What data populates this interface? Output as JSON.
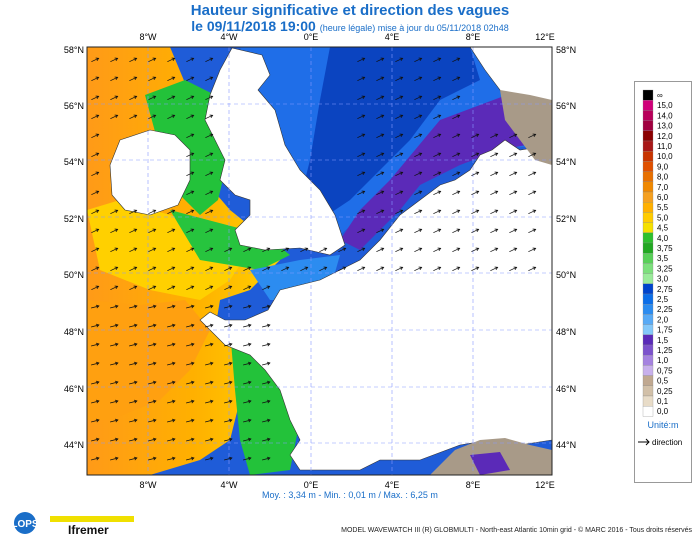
{
  "header": {
    "title": "Hauteur significative et direction des vagues",
    "date_label": "le 09/11/2018 19:00",
    "update_note": "(heure légale) mise à jour du 05/11/2018 02h48"
  },
  "map": {
    "lon_labels": [
      "8°W",
      "4°W",
      "0°E",
      "4°E",
      "8°E",
      "12°E"
    ],
    "lat_labels": [
      "58°N",
      "56°N",
      "54°N",
      "52°N",
      "50°N",
      "48°N",
      "46°N",
      "44°N"
    ],
    "colors": {
      "sea_high": "#ff9a18",
      "sea_mid": "#ffd000",
      "sea_green": "#23c23a",
      "sea_blue": "#1850e0",
      "land": "#ffffff",
      "land_east": "#a89a88"
    }
  },
  "legend": {
    "values": [
      "∞",
      "15,0",
      "14,0",
      "13,0",
      "12,0",
      "11,0",
      "10,0",
      "9,0",
      "8,0",
      "7,0",
      "6,0",
      "5,5",
      "5,0",
      "4,5",
      "4,0",
      "3,75",
      "3,5",
      "3,25",
      "3,0",
      "2,75",
      "2,5",
      "2,25",
      "2,0",
      "1,75",
      "1,5",
      "1,25",
      "1,0",
      "0,75",
      "0,5",
      "0,25",
      "0,1",
      "0,0"
    ],
    "colors": [
      "#000000",
      "#d0007a",
      "#b8005a",
      "#a0003f",
      "#8b0000",
      "#a81818",
      "#c83400",
      "#e05000",
      "#e87000",
      "#f08800",
      "#f5a020",
      "#ffb000",
      "#ffcc00",
      "#f5e000",
      "#2ec02e",
      "#22a822",
      "#58d058",
      "#7ce07c",
      "#9aeb9a",
      "#0044cc",
      "#0c6ee8",
      "#2c8cf0",
      "#58aaf6",
      "#84c8fa",
      "#5a2ab8",
      "#7c52cc",
      "#a582e0",
      "#c8b0ec",
      "#c0a890",
      "#d2c0a8",
      "#e8dcc8",
      "#ffffff"
    ],
    "unit": "Unité:m",
    "direction_label": "direction"
  },
  "stats": "Moy. : 3,34 m   -   Min. : 0,01 m / Max. : 6,25 m",
  "footer": "MODEL WAVEWATCH III (R) GLOBMULTI - North-east Atlantic 10min grid - © MARC 2016 - Tous droits réservés",
  "logos": {
    "lops": "LOPS",
    "ifremer": "Ifremer"
  }
}
